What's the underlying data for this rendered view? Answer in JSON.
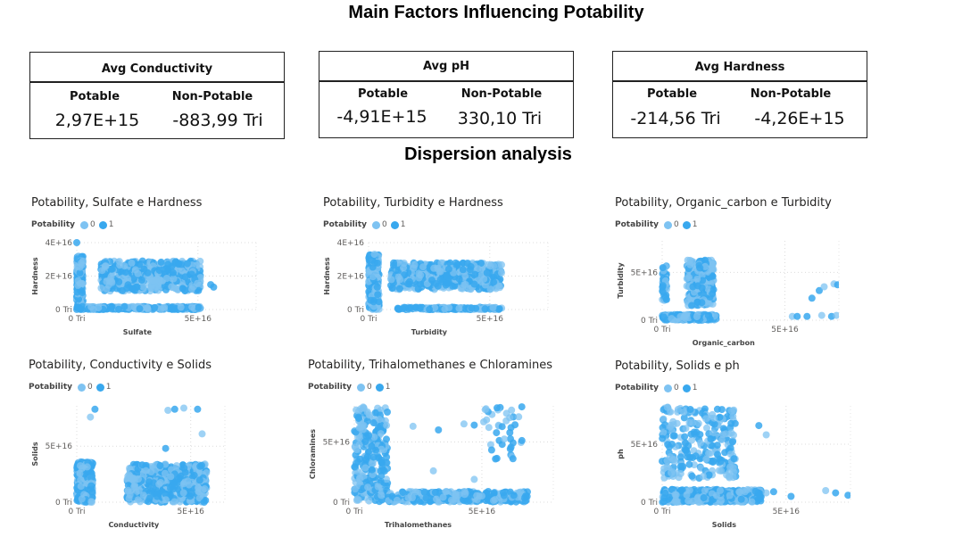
{
  "page": {
    "title": "Main Factors Influencing Potability",
    "subtitle": "Dispersion analysis"
  },
  "cards": [
    {
      "title": "Avg Conductivity",
      "potable_label": "Potable",
      "nonpotable_label": "Non-Potable",
      "potable_value": "2,97E+15",
      "nonpotable_value": "-883,99 Tri"
    },
    {
      "title": "Avg pH",
      "potable_label": "Potable",
      "nonpotable_label": "Non-Potable",
      "potable_value": "-4,91E+15",
      "nonpotable_value": "330,10 Tri"
    },
    {
      "title": "Avg Hardness",
      "potable_label": "Potable",
      "nonpotable_label": "Non-Potable",
      "potable_value": "-214,56 Tri",
      "nonpotable_value": "-4,26E+15"
    }
  ],
  "colors": {
    "class0": "#7ec3f2",
    "class1": "#38a8ee"
  },
  "chart_data": [
    {
      "type": "scatter",
      "title": "Potability, Sulfate e Hardness",
      "legend_title": "Potability",
      "legend": [
        "0",
        "1"
      ],
      "xlabel": "Sulfate",
      "ylabel": "Hardness",
      "xlim": [
        0,
        7.4e+16
      ],
      "ylim": [
        0,
        4e+16
      ],
      "xticks": [
        {
          "v": 0,
          "label": "0 Tri"
        },
        {
          "v": 5e+16,
          "label": "5E+16"
        }
      ],
      "yticks": [
        {
          "v": 0,
          "label": "0 Tri"
        },
        {
          "v": 2e+16,
          "label": "2E+16"
        },
        {
          "v": 4e+16,
          "label": "4E+16"
        }
      ],
      "clusters": [
        {
          "x": [
            0,
            2600000000000000.0
          ],
          "y": [
            1000000000000000.0,
            3.2e+16
          ],
          "n": 200,
          "series": [
            0,
            1
          ]
        },
        {
          "x": [
            1e+16,
            5.1e+16
          ],
          "y": [
            1.1e+16,
            2.9e+16
          ],
          "n": 550,
          "series": [
            0,
            1
          ]
        },
        {
          "x": [
            0,
            5.1e+16
          ],
          "y": [
            0,
            1800000000000000.0
          ],
          "n": 300,
          "series": [
            1,
            0
          ]
        },
        {
          "x": [
            5.4e+16,
            5.8e+16
          ],
          "y": [
            1.3e+16,
            1.6e+16
          ],
          "n": 2,
          "series": [
            1
          ]
        }
      ],
      "points": [
        {
          "x": 0,
          "y": 4e+16,
          "s": 1
        },
        {
          "x": 6900000000000000.0,
          "y": 0,
          "s": 0
        }
      ]
    },
    {
      "type": "scatter",
      "title": "Potability, Turbidity e Hardness",
      "legend_title": "Potability",
      "legend": [
        "0",
        "1"
      ],
      "xlabel": "Turbidity",
      "ylabel": "Hardness",
      "xlim": [
        0,
        7.4e+16
      ],
      "ylim": [
        0,
        4e+16
      ],
      "xticks": [
        {
          "v": 0,
          "label": "0 Tri"
        },
        {
          "v": 5e+16,
          "label": "5E+16"
        }
      ],
      "yticks": [
        {
          "v": 0,
          "label": "0 Tri"
        },
        {
          "v": 2e+16,
          "label": "2E+16"
        },
        {
          "v": 4e+16,
          "label": "4E+16"
        }
      ],
      "clusters": [
        {
          "x": [
            0,
            4300000000000000.0
          ],
          "y": [
            0,
            3.3e+16
          ],
          "n": 250,
          "series": [
            1,
            0
          ]
        },
        {
          "x": [
            9000000000000000.0,
            5.5e+16
          ],
          "y": [
            1.2e+16,
            2.8e+16
          ],
          "n": 550,
          "series": [
            1,
            0
          ]
        },
        {
          "x": [
            1.2e+16,
            5.5e+16
          ],
          "y": [
            0,
            1400000000000000.0
          ],
          "n": 200,
          "series": [
            1,
            0
          ]
        }
      ],
      "points": [
        {
          "x": 2400000000000000.0,
          "y": 3.3e+16,
          "s": 0
        }
      ]
    },
    {
      "type": "scatter",
      "title": "Potability, Organic_carbon e Turbidity",
      "legend_title": "Potability",
      "legend": [
        "0",
        "1"
      ],
      "xlabel": "Organic_carbon",
      "ylabel": "Turbidity",
      "xlim": [
        0,
        7.2e+16
      ],
      "ylim": [
        0,
        8.3e+16
      ],
      "xticks": [
        {
          "v": 0,
          "label": "0 Tri"
        },
        {
          "v": 5e+16,
          "label": "5E+16"
        }
      ],
      "yticks": [
        {
          "v": 0,
          "label": "0 Tri"
        },
        {
          "v": 5e+16,
          "label": "5E+16"
        }
      ],
      "clusters": [
        {
          "x": [
            0,
            1800000000000000.0
          ],
          "y": [
            2e+16,
            5.7e+16
          ],
          "n": 60,
          "series": [
            0,
            1
          ]
        },
        {
          "x": [
            1e+16,
            2.1e+16
          ],
          "y": [
            1.5e+16,
            6.3e+16
          ],
          "n": 280,
          "series": [
            1,
            0
          ]
        },
        {
          "x": [
            0,
            2.2e+16
          ],
          "y": [
            0,
            6000000000000000.0
          ],
          "n": 300,
          "series": [
            1,
            0
          ]
        }
      ],
      "points": [
        {
          "x": 5.3e+16,
          "y": 4000000000000000.0,
          "s": 0
        },
        {
          "x": 5.5e+16,
          "y": 4000000000000000.0,
          "s": 1
        },
        {
          "x": 5.9e+16,
          "y": 4000000000000000.0,
          "s": 1
        },
        {
          "x": 6.5e+16,
          "y": 5000000000000000.0,
          "s": 0
        },
        {
          "x": 6.9e+16,
          "y": 4000000000000000.0,
          "s": 1
        },
        {
          "x": 7.1e+16,
          "y": 5000000000000000.0,
          "s": 0
        },
        {
          "x": 6.1e+16,
          "y": 2.3e+16,
          "s": 1
        },
        {
          "x": 6.4e+16,
          "y": 3.1e+16,
          "s": 1
        },
        {
          "x": 6.6e+16,
          "y": 3.5e+16,
          "s": 0
        },
        {
          "x": 7e+16,
          "y": 3.8e+16,
          "s": 0
        },
        {
          "x": 7.15e+16,
          "y": 3.7e+16,
          "s": 1
        }
      ]
    },
    {
      "type": "scatter",
      "title": "Potability, Conductivity e Solids",
      "legend_title": "Potability",
      "legend": [
        "0",
        "1"
      ],
      "xlabel": "Conductivity",
      "ylabel": "Solids",
      "xlim": [
        0,
        6.5e+16
      ],
      "ylim": [
        0,
        8.6e+16
      ],
      "xticks": [
        {
          "v": 0,
          "label": "0 Tri"
        },
        {
          "v": 5e+16,
          "label": "5E+16"
        }
      ],
      "yticks": [
        {
          "v": 0,
          "label": "0 Tri"
        },
        {
          "v": 5e+16,
          "label": "5E+16"
        }
      ],
      "clusters": [
        {
          "x": [
            0,
            7000000000000000.0
          ],
          "y": [
            0,
            3.6e+16
          ],
          "n": 350,
          "series": [
            1,
            0
          ]
        },
        {
          "x": [
            2.2e+16,
            5.7e+16
          ],
          "y": [
            0,
            3.4e+16
          ],
          "n": 600,
          "series": [
            1,
            0
          ]
        }
      ],
      "points": [
        {
          "x": 6000000000000000.0,
          "y": 7.6e+16,
          "s": 0
        },
        {
          "x": 8000000000000000.0,
          "y": 8.3e+16,
          "s": 1
        },
        {
          "x": 4e+16,
          "y": 8.2e+16,
          "s": 0
        },
        {
          "x": 4.3e+16,
          "y": 8.3e+16,
          "s": 1
        },
        {
          "x": 4.7e+16,
          "y": 8.4e+16,
          "s": 0
        },
        {
          "x": 5.3e+16,
          "y": 8.3e+16,
          "s": 1
        },
        {
          "x": 5.5e+16,
          "y": 6.1e+16,
          "s": 0
        },
        {
          "x": 3.9e+16,
          "y": 4.8e+16,
          "s": 1
        }
      ]
    },
    {
      "type": "scatter",
      "title": "Potability, Trihalomethanes e Chloramines",
      "legend_title": "Potability",
      "legend": [
        "0",
        "1"
      ],
      "xlabel": "Trihalomethanes",
      "ylabel": "Chloramines",
      "xlim": [
        0,
        7.8e+16
      ],
      "ylim": [
        0,
        8e+16
      ],
      "xticks": [
        {
          "v": 0,
          "label": "0 Tri"
        },
        {
          "v": 5e+16,
          "label": "5E+16"
        }
      ],
      "yticks": [
        {
          "v": 0,
          "label": "0 Tri"
        },
        {
          "v": 5e+16,
          "label": "5E+16"
        }
      ],
      "clusters": [
        {
          "x": [
            0,
            1.3e+16
          ],
          "y": [
            0,
            8e+16
          ],
          "n": 280,
          "series": [
            0,
            1
          ]
        },
        {
          "x": [
            1.3e+16,
            6.8e+16
          ],
          "y": [
            0,
            9000000000000000.0
          ],
          "n": 350,
          "series": [
            1,
            0
          ]
        },
        {
          "x": [
            5e+16,
            6.6e+16
          ],
          "y": [
            3.5e+16,
            8e+16
          ],
          "n": 40,
          "series": [
            1,
            0
          ]
        }
      ],
      "points": [
        {
          "x": 2.3e+16,
          "y": 6.3e+16,
          "s": 0
        },
        {
          "x": 3.3e+16,
          "y": 6e+16,
          "s": 1
        },
        {
          "x": 3.1e+16,
          "y": 2.6e+16,
          "s": 0
        },
        {
          "x": 4.3e+16,
          "y": 6.5e+16,
          "s": 0
        },
        {
          "x": 4.7e+16,
          "y": 6.4e+16,
          "s": 1
        },
        {
          "x": 4.7e+16,
          "y": 1.9e+16,
          "s": 0
        }
      ]
    },
    {
      "type": "scatter",
      "title": "Potability, Solids e ph",
      "legend_title": "Potability",
      "legend": [
        "0",
        "1"
      ],
      "xlabel": "Solids",
      "ylabel": "ph",
      "xlim": [
        0,
        7.6e+16
      ],
      "ylim": [
        0,
        8.3e+16
      ],
      "xticks": [
        {
          "v": 0,
          "label": "0 Tri"
        },
        {
          "v": 5e+16,
          "label": "5E+16"
        }
      ],
      "yticks": [
        {
          "v": 0,
          "label": "0 Tri"
        },
        {
          "v": 5e+16,
          "label": "5E+16"
        }
      ],
      "clusters": [
        {
          "x": [
            0,
            3e+16
          ],
          "y": [
            2e+16,
            8.2e+16
          ],
          "n": 260,
          "series": [
            1,
            0
          ]
        },
        {
          "x": [
            0,
            4e+16
          ],
          "y": [
            0,
            1.1e+16
          ],
          "n": 450,
          "series": [
            1,
            0
          ]
        }
      ],
      "points": [
        {
          "x": 4.2e+16,
          "y": 5.8e+16,
          "s": 0
        },
        {
          "x": 3.9e+16,
          "y": 6.6e+16,
          "s": 1
        },
        {
          "x": 4.2e+16,
          "y": 8000000000000000.0,
          "s": 0
        },
        {
          "x": 4.5e+16,
          "y": 9000000000000000.0,
          "s": 1
        },
        {
          "x": 5.2e+16,
          "y": 5000000000000000.0,
          "s": 1
        },
        {
          "x": 6.6e+16,
          "y": 1e+16,
          "s": 0
        },
        {
          "x": 7e+16,
          "y": 8000000000000000.0,
          "s": 1
        },
        {
          "x": 7.5e+16,
          "y": 6000000000000000.0,
          "s": 1
        }
      ]
    }
  ]
}
